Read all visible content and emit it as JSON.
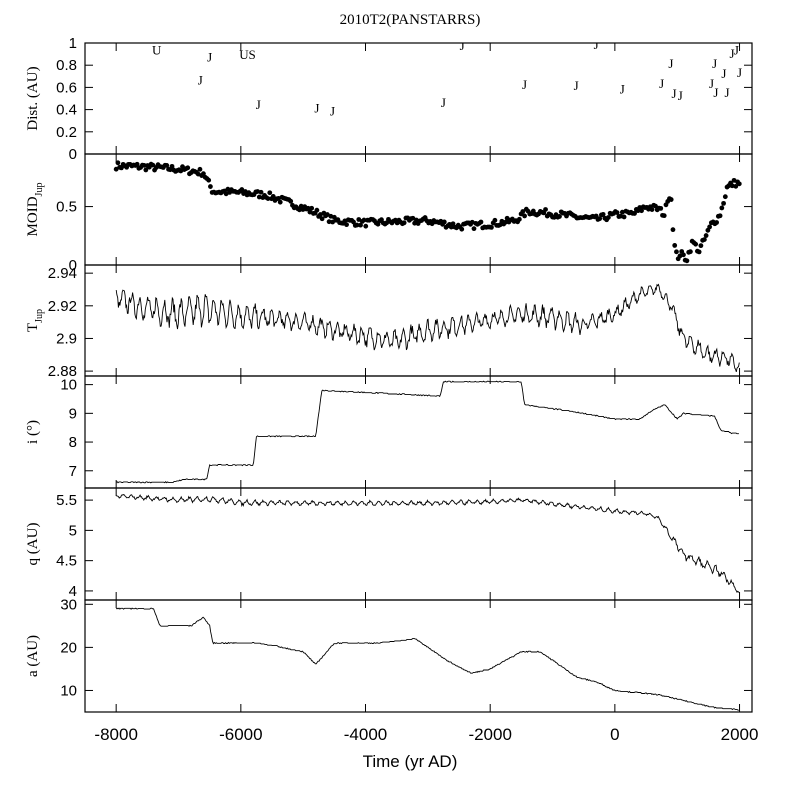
{
  "chart_data": {
    "type": "line",
    "title": "2010T2(PANSTARRS)",
    "xlabel": "Time (yr AD)",
    "xlim": [
      -8500,
      2200
    ],
    "xticks": [
      -8000,
      -6000,
      -4000,
      -2000,
      0,
      2000
    ],
    "xtick_labels": [
      "-8000",
      "-6000",
      "-4000",
      "-2000",
      "0",
      "2000"
    ],
    "panels": [
      {
        "id": "dist",
        "ylabel": "Dist. (AU)",
        "ylim": [
          0,
          1
        ],
        "yticks": [
          0,
          0.2,
          0.4,
          0.6,
          0.8,
          1
        ],
        "ytick_labels": [
          "0",
          "0.2",
          "0.4",
          "0.6",
          "0.8",
          "1"
        ],
        "encounters": [
          {
            "label": "U",
            "x": -7350,
            "y": 0.94
          },
          {
            "label": "J",
            "x": -6500,
            "y": 0.88
          },
          {
            "label": "J",
            "x": -6650,
            "y": 0.67
          },
          {
            "label": "U",
            "x": -5950,
            "y": 0.9
          },
          {
            "label": "S",
            "x": -5820,
            "y": 0.9
          },
          {
            "label": "J",
            "x": -5720,
            "y": 0.45
          },
          {
            "label": "J",
            "x": -4780,
            "y": 0.42
          },
          {
            "label": "J",
            "x": -4530,
            "y": 0.39
          },
          {
            "label": "J",
            "x": -2750,
            "y": 0.47
          },
          {
            "label": "J",
            "x": -2450,
            "y": 0.98
          },
          {
            "label": "J",
            "x": -1450,
            "y": 0.63
          },
          {
            "label": "J",
            "x": -620,
            "y": 0.62
          },
          {
            "label": "J",
            "x": -300,
            "y": 0.99
          },
          {
            "label": "J",
            "x": 120,
            "y": 0.59
          },
          {
            "label": "J",
            "x": 750,
            "y": 0.64
          },
          {
            "label": "J",
            "x": 900,
            "y": 0.82
          },
          {
            "label": "J",
            "x": 950,
            "y": 0.55
          },
          {
            "label": "J",
            "x": 1050,
            "y": 0.53
          },
          {
            "label": "J",
            "x": 1550,
            "y": 0.64
          },
          {
            "label": "J",
            "x": 1600,
            "y": 0.82
          },
          {
            "label": "J",
            "x": 1620,
            "y": 0.56
          },
          {
            "label": "J",
            "x": 1750,
            "y": 0.73
          },
          {
            "label": "J",
            "x": 1800,
            "y": 0.56
          },
          {
            "label": "J",
            "x": 1880,
            "y": 0.91
          },
          {
            "label": "J",
            "x": 1950,
            "y": 0.94
          },
          {
            "label": "J",
            "x": 2000,
            "y": 0.74
          }
        ]
      },
      {
        "id": "moid",
        "ylabel": "MOID",
        "ylabel_sub": "Jup",
        "ylim": [
          0,
          0.95
        ],
        "yticks": [
          0,
          0.5
        ],
        "ytick_labels": [
          "0",
          "0.5"
        ],
        "style": "dots",
        "x": [
          -8000,
          -7500,
          -7000,
          -6600,
          -6450,
          -6000,
          -5600,
          -5200,
          -4800,
          -4500,
          -4000,
          -3500,
          -3000,
          -2500,
          -2000,
          -1600,
          -1400,
          -1000,
          -600,
          -300,
          0,
          300,
          500,
          700,
          800,
          850,
          900,
          950,
          1000,
          1050,
          1150,
          1250,
          1350,
          1450,
          1550,
          1650,
          1700,
          1800,
          1900,
          2000
        ],
        "y": [
          0.85,
          0.84,
          0.82,
          0.79,
          0.63,
          0.62,
          0.6,
          0.53,
          0.45,
          0.38,
          0.36,
          0.37,
          0.38,
          0.33,
          0.35,
          0.38,
          0.46,
          0.44,
          0.41,
          0.39,
          0.43,
          0.44,
          0.5,
          0.48,
          0.43,
          0.58,
          0.6,
          0.18,
          0.06,
          0.1,
          0.05,
          0.2,
          0.12,
          0.23,
          0.35,
          0.4,
          0.45,
          0.66,
          0.7,
          0.7
        ]
      },
      {
        "id": "tjup",
        "ylabel": "T",
        "ylabel_sub": "Jup",
        "ylim": [
          2.877,
          2.945
        ],
        "yticks": [
          2.88,
          2.9,
          2.92,
          2.94
        ],
        "ytick_labels": [
          "2.88",
          "2.9",
          "2.92",
          "2.94"
        ],
        "style": "noisy",
        "x": [
          -8000,
          -7500,
          -7000,
          -6600,
          -6000,
          -5000,
          -4500,
          -3500,
          -3000,
          -2200,
          -1500,
          -1000,
          -500,
          0,
          400,
          700,
          900,
          1100,
          1500,
          1800,
          2000
        ],
        "y": [
          2.925,
          2.918,
          2.915,
          2.918,
          2.914,
          2.91,
          2.905,
          2.898,
          2.905,
          2.91,
          2.915,
          2.913,
          2.908,
          2.915,
          2.927,
          2.931,
          2.92,
          2.9,
          2.89,
          2.888,
          2.882
        ],
        "amp": [
          0.006,
          0.009,
          0.009,
          0.01,
          0.008,
          0.006,
          0.006,
          0.007,
          0.007,
          0.006,
          0.006,
          0.007,
          0.006,
          0.005,
          0.004,
          0.003,
          0.004,
          0.006,
          0.006,
          0.005,
          0.004
        ]
      },
      {
        "id": "incl",
        "ylabel": "i (°)",
        "ylim": [
          6.4,
          10.3
        ],
        "yticks": [
          7,
          8,
          9,
          10
        ],
        "ytick_labels": [
          "7",
          "8",
          "9",
          "10"
        ],
        "style": "step",
        "x": [
          -8000,
          -7100,
          -6900,
          -6550,
          -6500,
          -5800,
          -5750,
          -4800,
          -4700,
          -2800,
          -2750,
          -1500,
          -1450,
          -500,
          0,
          400,
          600,
          800,
          1000,
          1100,
          1600,
          1700,
          1900,
          2000
        ],
        "y": [
          6.6,
          6.6,
          6.7,
          6.7,
          7.2,
          7.2,
          8.2,
          8.2,
          9.8,
          9.6,
          10.1,
          10.1,
          9.3,
          9.0,
          8.8,
          8.8,
          9.1,
          9.3,
          8.8,
          9.0,
          8.9,
          8.4,
          8.3,
          8.3
        ]
      },
      {
        "id": "q",
        "ylabel": "q (AU)",
        "ylim": [
          3.85,
          5.7
        ],
        "yticks": [
          4,
          4.5,
          5,
          5.5
        ],
        "ytick_labels": [
          "4",
          "4.5",
          "5",
          "5.5"
        ],
        "style": "noisy",
        "x": [
          -8000,
          -7000,
          -6500,
          -6000,
          -5000,
          -4000,
          -3000,
          -2000,
          -1500,
          -1000,
          -500,
          0,
          500,
          700,
          900,
          1100,
          1300,
          1500,
          1700,
          1900,
          2000
        ],
        "y": [
          5.57,
          5.5,
          5.52,
          5.46,
          5.45,
          5.45,
          5.45,
          5.47,
          5.5,
          5.44,
          5.38,
          5.32,
          5.28,
          5.2,
          4.9,
          4.6,
          4.5,
          4.4,
          4.3,
          4.1,
          3.95
        ],
        "amp": [
          0.03,
          0.05,
          0.05,
          0.05,
          0.04,
          0.04,
          0.04,
          0.04,
          0.03,
          0.04,
          0.04,
          0.04,
          0.03,
          0.03,
          0.06,
          0.08,
          0.09,
          0.08,
          0.08,
          0.06,
          0.03
        ]
      },
      {
        "id": "a",
        "ylabel": "a (AU)",
        "ylim": [
          5,
          31
        ],
        "yticks": [
          10,
          20,
          30
        ],
        "ytick_labels": [
          "10",
          "20",
          "30"
        ],
        "style": "step",
        "x": [
          -8000,
          -7400,
          -7300,
          -6800,
          -6600,
          -6500,
          -6450,
          -5700,
          -5000,
          -4800,
          -4500,
          -3800,
          -3200,
          -2700,
          -2300,
          -2000,
          -1500,
          -1200,
          -600,
          -300,
          0,
          700,
          1000,
          1300,
          1600,
          2000
        ],
        "y": [
          29,
          29,
          25,
          25,
          27,
          25,
          21,
          21,
          19,
          16,
          21,
          21,
          22,
          17,
          14,
          15,
          19,
          19,
          13,
          12,
          10,
          9,
          8,
          7,
          6,
          5.5
        ]
      }
    ]
  }
}
